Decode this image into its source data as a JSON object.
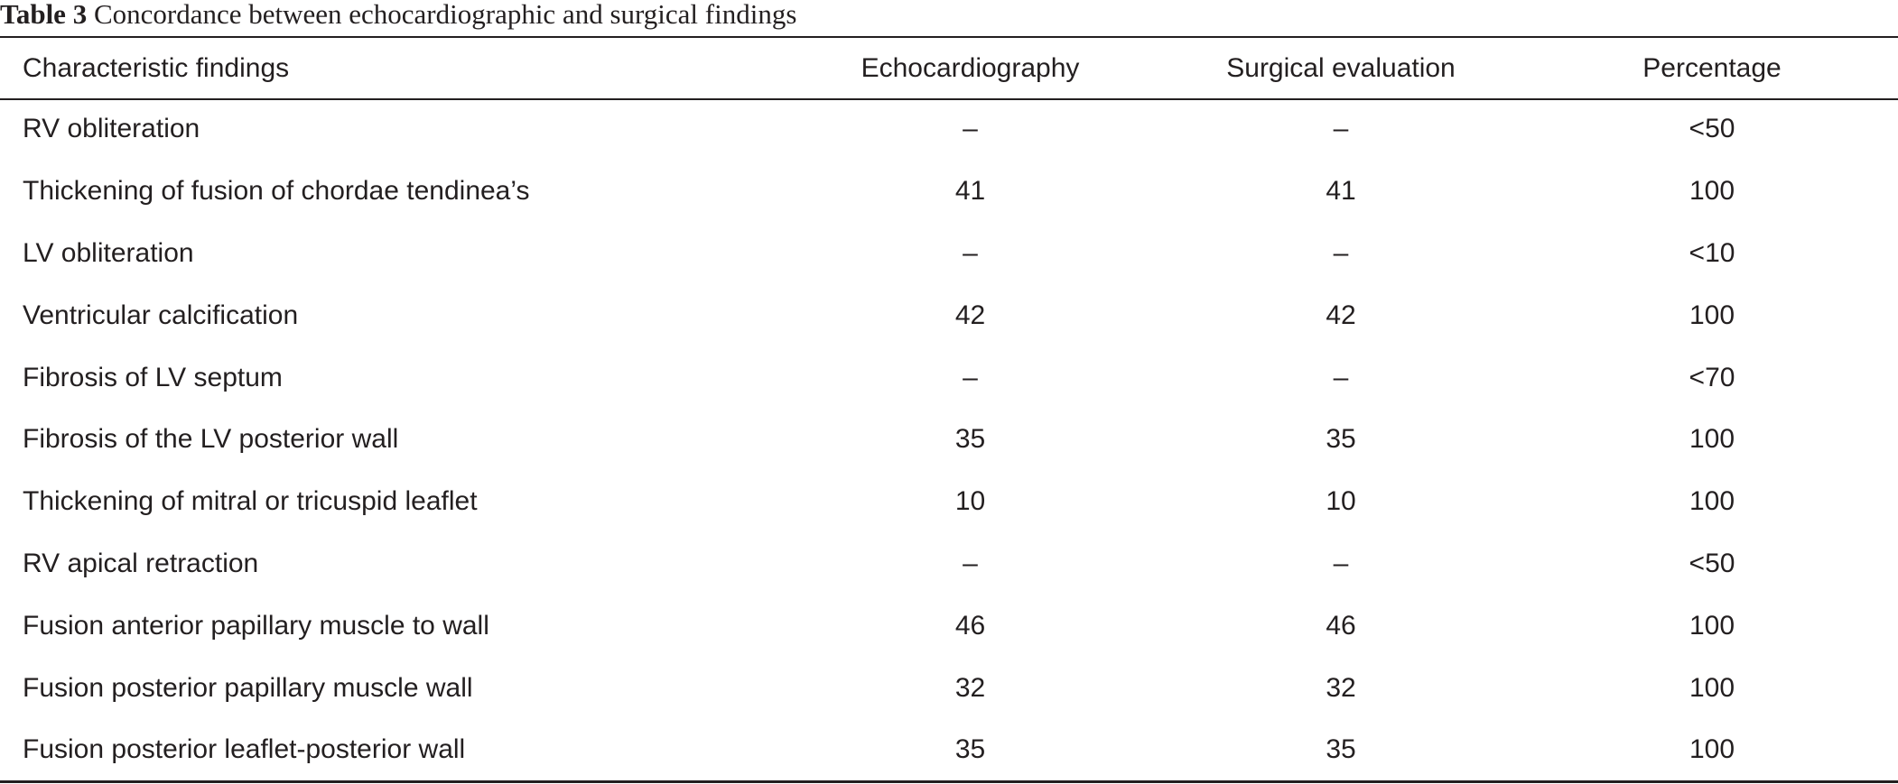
{
  "caption": {
    "label": "Table 3",
    "text": "Concordance between echocardiographic and surgical findings"
  },
  "table": {
    "headers": [
      "Characteristic findings",
      "Echocardiography",
      "Surgical evaluation",
      "Percentage"
    ],
    "rows": [
      [
        "RV obliteration",
        "–",
        "–",
        "<50"
      ],
      [
        "Thickening of fusion of chordae tendinea’s",
        "41",
        "41",
        "100"
      ],
      [
        "LV obliteration",
        "–",
        "–",
        "<10"
      ],
      [
        "Ventricular calcification",
        "42",
        "42",
        "100"
      ],
      [
        "Fibrosis of LV septum",
        "–",
        "–",
        "<70"
      ],
      [
        "Fibrosis of the LV posterior wall",
        "35",
        "35",
        "100"
      ],
      [
        "Thickening of mitral or tricuspid leaflet",
        "10",
        "10",
        "100"
      ],
      [
        "RV apical retraction",
        "–",
        "–",
        "<50"
      ],
      [
        "Fusion anterior papillary muscle to wall",
        "46",
        "46",
        "100"
      ],
      [
        "Fusion posterior papillary muscle wall",
        "32",
        "32",
        "100"
      ],
      [
        "Fusion posterior leaflet-posterior wall",
        "35",
        "35",
        "100"
      ]
    ]
  }
}
